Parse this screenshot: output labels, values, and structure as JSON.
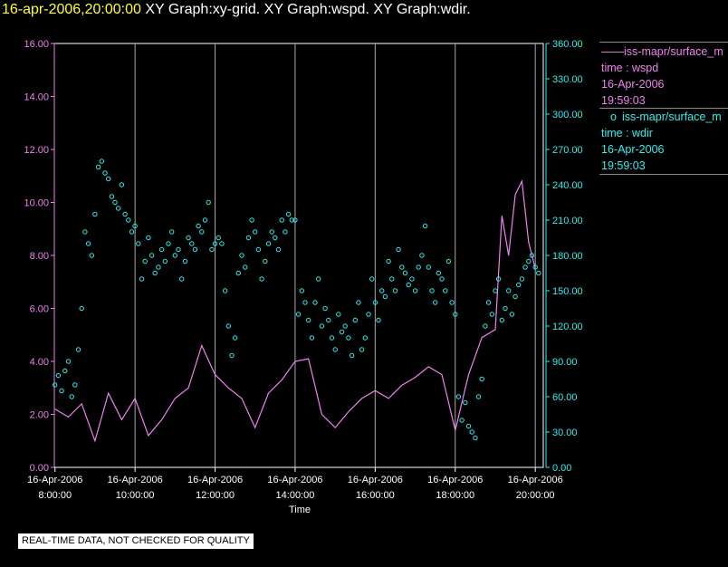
{
  "header": {
    "time": "16-apr-2006,20:00:00",
    "rest": "  XY Graph:xy-grid.  XY Graph:wspd.  XY Graph:wdir."
  },
  "legend": {
    "wspd": {
      "marker": "——",
      "name": "iss-mapr/surface_m",
      "line2": "time : wspd",
      "date": "16-Apr-2006",
      "time": "19:59:03"
    },
    "wdir": {
      "marker": "o",
      "name": "iss-mapr/surface_m",
      "line2": "time : wdir",
      "date": "16-Apr-2006",
      "time": "19:59:03"
    }
  },
  "note": "REAL-TIME DATA, NOT CHECKED FOR QUALITY",
  "colors": {
    "wspd": "#ee82ee",
    "wdir": "#33eeee",
    "grid": "#aaaaaa",
    "frame": "#ffffff"
  },
  "chart_data": {
    "type": "line",
    "xlabel": "Time",
    "x_range": [
      "16-Apr-2006 07:59",
      "16-Apr-2006 20:12"
    ],
    "grid": "vertical",
    "x_ticks": [
      {
        "date": "16-Apr-2006",
        "time": "8:00:00"
      },
      {
        "date": "16-Apr-2006",
        "time": "10:00:00"
      },
      {
        "date": "16-Apr-2006",
        "time": "12:00:00"
      },
      {
        "date": "16-Apr-2006",
        "time": "14:00:00"
      },
      {
        "date": "16-Apr-2006",
        "time": "16:00:00"
      },
      {
        "date": "16-Apr-2006",
        "time": "18:00:00"
      },
      {
        "date": "16-Apr-2006",
        "time": "20:00:00"
      }
    ],
    "y_left": {
      "range": [
        0,
        16
      ],
      "ticks": [
        "0.00",
        "2.00",
        "4.00",
        "6.00",
        "8.00",
        "10.00",
        "12.00",
        "14.00",
        "16.00"
      ]
    },
    "y_right": {
      "range": [
        0,
        360
      ],
      "ticks": [
        "0.00",
        "30.00",
        "60.00",
        "90.00",
        "120.00",
        "150.00",
        "180.00",
        "210.00",
        "240.00",
        "270.00",
        "300.00",
        "330.00",
        "360.00"
      ]
    },
    "series": [
      {
        "type": "line",
        "axis": "left",
        "x": [
          "08:00",
          "08:20",
          "08:40",
          "09:00",
          "09:20",
          "09:40",
          "10:00",
          "10:20",
          "10:40",
          "11:00",
          "11:20",
          "11:40",
          "12:00",
          "12:20",
          "12:40",
          "13:00",
          "13:20",
          "13:40",
          "14:00",
          "14:20",
          "14:40",
          "15:00",
          "15:20",
          "15:40",
          "16:00",
          "16:20",
          "16:40",
          "17:00",
          "17:20",
          "17:40",
          "18:00",
          "18:20",
          "18:40",
          "19:00",
          "19:10",
          "19:20",
          "19:30",
          "19:40",
          "19:50",
          "20:00"
        ],
        "values": [
          2.2,
          1.9,
          2.4,
          1.0,
          2.8,
          1.8,
          2.6,
          1.2,
          1.8,
          2.6,
          3.0,
          4.6,
          3.5,
          3.0,
          2.6,
          1.5,
          2.8,
          3.3,
          4.0,
          4.1,
          2.0,
          1.5,
          2.1,
          2.6,
          2.9,
          2.6,
          3.1,
          3.4,
          3.8,
          3.5,
          1.4,
          3.5,
          4.9,
          5.2,
          9.5,
          8.0,
          10.3,
          10.8,
          8.5,
          7.5
        ]
      },
      {
        "type": "scatter",
        "axis": "right",
        "x": [
          "08:00",
          "08:05",
          "08:10",
          "08:15",
          "08:20",
          "08:25",
          "08:30",
          "08:35",
          "08:40",
          "08:45",
          "08:50",
          "08:55",
          "09:00",
          "09:05",
          "09:10",
          "09:15",
          "09:20",
          "09:25",
          "09:30",
          "09:35",
          "09:40",
          "09:45",
          "09:50",
          "09:55",
          "10:00",
          "10:05",
          "10:10",
          "10:15",
          "10:20",
          "10:25",
          "10:30",
          "10:35",
          "10:40",
          "10:45",
          "10:50",
          "10:55",
          "11:00",
          "11:05",
          "11:10",
          "11:15",
          "11:20",
          "11:25",
          "11:30",
          "11:35",
          "11:40",
          "11:45",
          "11:50",
          "11:55",
          "12:00",
          "12:05",
          "12:10",
          "12:15",
          "12:20",
          "12:25",
          "12:30",
          "12:35",
          "12:40",
          "12:45",
          "12:50",
          "12:55",
          "13:00",
          "13:05",
          "13:10",
          "13:15",
          "13:20",
          "13:25",
          "13:30",
          "13:35",
          "13:40",
          "13:45",
          "13:50",
          "13:55",
          "14:00",
          "14:05",
          "14:10",
          "14:15",
          "14:20",
          "14:25",
          "14:30",
          "14:35",
          "14:40",
          "14:45",
          "14:50",
          "14:55",
          "15:00",
          "15:05",
          "15:10",
          "15:15",
          "15:20",
          "15:25",
          "15:30",
          "15:35",
          "15:40",
          "15:45",
          "15:50",
          "15:55",
          "16:00",
          "16:05",
          "16:10",
          "16:15",
          "16:20",
          "16:25",
          "16:30",
          "16:35",
          "16:40",
          "16:45",
          "16:50",
          "16:55",
          "17:00",
          "17:05",
          "17:10",
          "17:15",
          "17:20",
          "17:25",
          "17:30",
          "17:35",
          "17:40",
          "17:45",
          "17:50",
          "17:55",
          "18:00",
          "18:05",
          "18:10",
          "18:15",
          "18:20",
          "18:25",
          "18:30",
          "18:35",
          "18:40",
          "18:45",
          "18:50",
          "18:55",
          "19:00",
          "19:05",
          "19:10",
          "19:15",
          "19:20",
          "19:25",
          "19:30",
          "19:35",
          "19:40",
          "19:45",
          "19:50",
          "19:55",
          "20:00",
          "20:05"
        ],
        "values": [
          70,
          78,
          65,
          82,
          90,
          60,
          70,
          100,
          135,
          200,
          190,
          180,
          215,
          255,
          260,
          250,
          245,
          230,
          225,
          220,
          240,
          215,
          210,
          200,
          205,
          190,
          160,
          175,
          195,
          180,
          165,
          170,
          185,
          175,
          190,
          200,
          180,
          185,
          160,
          175,
          195,
          190,
          185,
          205,
          200,
          210,
          225,
          185,
          190,
          195,
          190,
          150,
          120,
          95,
          110,
          165,
          180,
          170,
          195,
          210,
          200,
          185,
          160,
          175,
          190,
          200,
          195,
          185,
          210,
          200,
          215,
          210,
          210,
          130,
          150,
          140,
          125,
          110,
          140,
          160,
          120,
          135,
          125,
          110,
          100,
          130,
          115,
          120,
          110,
          95,
          125,
          140,
          100,
          110,
          130,
          160,
          140,
          125,
          150,
          145,
          175,
          160,
          150,
          185,
          170,
          165,
          155,
          160,
          150,
          170,
          180,
          205,
          170,
          150,
          140,
          165,
          160,
          150,
          175,
          140,
          130,
          60,
          40,
          55,
          35,
          30,
          25,
          60,
          75,
          120,
          140,
          130,
          150,
          160,
          125,
          135,
          150,
          130,
          145,
          155,
          160,
          170,
          175,
          180,
          170,
          165
        ]
      }
    ]
  }
}
